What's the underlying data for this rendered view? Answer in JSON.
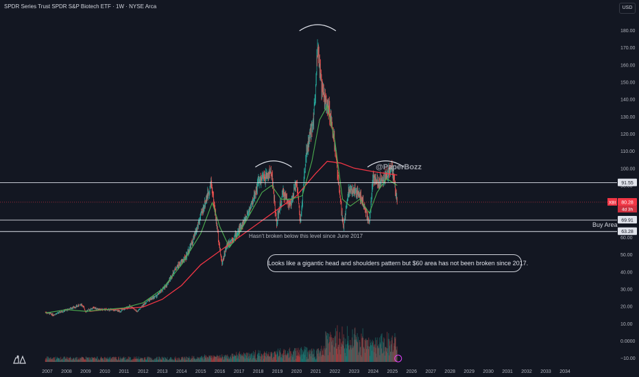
{
  "header": {
    "title": "SPDR Series Trust SPDR S&P Biotech ETF · 1W · NYSE Arca",
    "currency_button": "USD"
  },
  "watermark": "@PaperBozz",
  "annotations": {
    "note_box": "Looks like a gigantic head and shoulders pattern but $60 area has not been broken since 2017.",
    "level_note": "Hasn't broken below this level since June 2017",
    "buy_area": "Buy Area"
  },
  "price_badges": {
    "ticker": "XBI",
    "last": "80.28",
    "countdown": "4d 3h",
    "level_top": "91.55",
    "level_mid": "69.91",
    "level_bottom": "63.28"
  },
  "colors": {
    "background": "#131722",
    "candle_up": "#26a69a",
    "candle_down": "#ef5350",
    "ma_slow": "#f23645",
    "ma_fast": "#4caf50",
    "level_line": "#e0e3eb",
    "last_price": "#f23645"
  },
  "chart_data": {
    "type": "candlestick",
    "x_axis": {
      "ticks": [
        "2007",
        "2008",
        "2009",
        "2010",
        "2011",
        "2012",
        "2013",
        "2014",
        "2015",
        "2016",
        "2017",
        "2018",
        "2019",
        "2020",
        "2021",
        "2022",
        "2023",
        "2024",
        "2025",
        "2026",
        "2027",
        "2028",
        "2029",
        "2030",
        "2031",
        "2032",
        "2033",
        "2034"
      ]
    },
    "price_axis": {
      "ticks": [
        "180.00",
        "170.00",
        "160.00",
        "150.00",
        "140.00",
        "130.00",
        "120.00",
        "110.00",
        "100.00",
        "90.00",
        "80.00",
        "70.00",
        "60.00",
        "50.00",
        "40.00",
        "30.00",
        "20.00",
        "10.00",
        "0.0000",
        "−10.00"
      ],
      "ylim": [
        -10,
        185
      ]
    },
    "price_series_approx": [
      [
        2006.9,
        16.5
      ],
      [
        2007.3,
        15
      ],
      [
        2007.8,
        17
      ],
      [
        2008.3,
        19
      ],
      [
        2008.8,
        21
      ],
      [
        2009.0,
        17
      ],
      [
        2009.4,
        19
      ],
      [
        2009.8,
        18
      ],
      [
        2010.3,
        18
      ],
      [
        2010.8,
        17
      ],
      [
        2011.3,
        20
      ],
      [
        2011.7,
        17
      ],
      [
        2012.2,
        23
      ],
      [
        2012.7,
        26
      ],
      [
        2013.2,
        32
      ],
      [
        2013.7,
        42
      ],
      [
        2014.2,
        48
      ],
      [
        2014.6,
        58
      ],
      [
        2015.0,
        72
      ],
      [
        2015.4,
        86
      ],
      [
        2015.55,
        92
      ],
      [
        2015.8,
        70
      ],
      [
        2016.1,
        45
      ],
      [
        2016.4,
        56
      ],
      [
        2016.9,
        62
      ],
      [
        2017.3,
        70
      ],
      [
        2017.7,
        80
      ],
      [
        2018.0,
        92
      ],
      [
        2018.4,
        95
      ],
      [
        2018.7,
        98
      ],
      [
        2018.95,
        68
      ],
      [
        2019.3,
        86
      ],
      [
        2019.7,
        78
      ],
      [
        2020.0,
        93
      ],
      [
        2020.2,
        68
      ],
      [
        2020.5,
        108
      ],
      [
        2020.9,
        130
      ],
      [
        2021.1,
        172
      ],
      [
        2021.3,
        146
      ],
      [
        2021.7,
        135
      ],
      [
        2021.95,
        118
      ],
      [
        2022.2,
        90
      ],
      [
        2022.45,
        66
      ],
      [
        2022.7,
        86
      ],
      [
        2023.0,
        88
      ],
      [
        2023.4,
        82
      ],
      [
        2023.8,
        68
      ],
      [
        2024.0,
        95
      ],
      [
        2024.3,
        92
      ],
      [
        2024.7,
        96
      ],
      [
        2024.95,
        101
      ],
      [
        2025.1,
        92
      ],
      [
        2025.25,
        80.28
      ]
    ],
    "ma_fast_approx": [
      [
        2006.9,
        16
      ],
      [
        2008,
        18
      ],
      [
        2009,
        17
      ],
      [
        2010,
        18
      ],
      [
        2011,
        19
      ],
      [
        2012,
        22
      ],
      [
        2013,
        30
      ],
      [
        2014,
        44
      ],
      [
        2015,
        62
      ],
      [
        2015.6,
        80
      ],
      [
        2016.0,
        66
      ],
      [
        2016.5,
        54
      ],
      [
        2017,
        62
      ],
      [
        2017.6,
        74
      ],
      [
        2018.2,
        86
      ],
      [
        2018.7,
        90
      ],
      [
        2019.2,
        82
      ],
      [
        2019.7,
        82
      ],
      [
        2020.3,
        84
      ],
      [
        2020.8,
        104
      ],
      [
        2021.2,
        128
      ],
      [
        2021.6,
        136
      ],
      [
        2022.0,
        116
      ],
      [
        2022.4,
        82
      ],
      [
        2022.8,
        78
      ],
      [
        2023.3,
        82
      ],
      [
        2023.8,
        74
      ],
      [
        2024.2,
        86
      ],
      [
        2024.7,
        94
      ],
      [
        2025.25,
        90
      ]
    ],
    "ma_slow_approx": [
      [
        2009.2,
        17
      ],
      [
        2010,
        18
      ],
      [
        2011,
        18.5
      ],
      [
        2012,
        19.5
      ],
      [
        2013,
        24
      ],
      [
        2014,
        32
      ],
      [
        2015,
        44
      ],
      [
        2016,
        52
      ],
      [
        2017,
        60
      ],
      [
        2018,
        68
      ],
      [
        2019,
        76
      ],
      [
        2020,
        84
      ],
      [
        2021,
        97
      ],
      [
        2021.6,
        104
      ],
      [
        2022.3,
        103
      ],
      [
        2023,
        100
      ],
      [
        2024,
        98
      ],
      [
        2025.25,
        96
      ]
    ],
    "horizontal_levels": [
      91.55,
      69.91,
      63.28
    ],
    "last_price": 80.28,
    "volume_panel": "weekly volume histogram (unlabeled)",
    "pattern_arcs": [
      "left shoulder ~2018-2019",
      "head ~2021",
      "right shoulder ~2024-2025"
    ],
    "grid": false
  }
}
